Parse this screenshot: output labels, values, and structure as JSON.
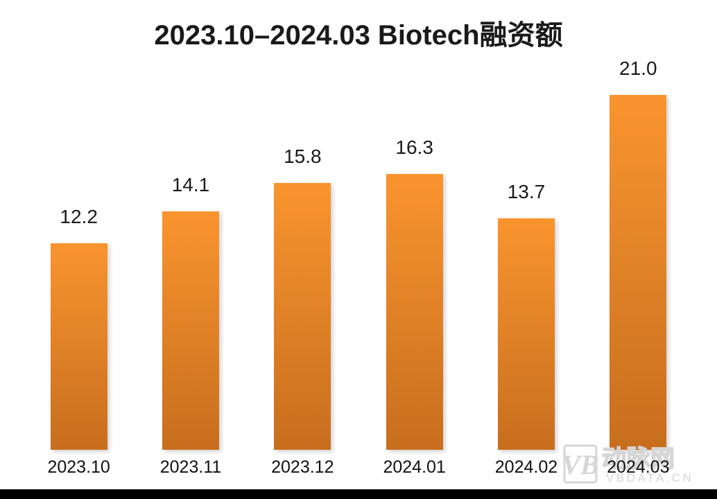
{
  "page": {
    "background_color": "#ffffff",
    "bottom_bar_color": "#000000",
    "text_color": "#1a1a1a"
  },
  "title": "2023.10–2024.03 Biotech融资额",
  "chart_data": {
    "type": "bar",
    "title": "2023.10–2024.03 Biotech融资额",
    "categories": [
      "2023.10",
      "2023.11",
      "2023.12",
      "2024.01",
      "2024.02",
      "2024.03"
    ],
    "values": [
      12.2,
      14.1,
      15.8,
      16.3,
      13.7,
      21.0
    ],
    "value_labels": [
      "12.2",
      "14.1",
      "15.8",
      "16.3",
      "13.7",
      "21.0"
    ],
    "xlabel": "",
    "ylabel": "",
    "ylim": [
      0,
      23.3
    ],
    "grid": false,
    "legend": false,
    "data_labels_shown": true,
    "bar_color_top": "#F9952F",
    "bar_color_bottom": "#C76E1E"
  },
  "watermark": {
    "logo_text": "VB",
    "name": "动脉网",
    "site": "VBDATA.CN",
    "color": "#d6d6d6"
  }
}
